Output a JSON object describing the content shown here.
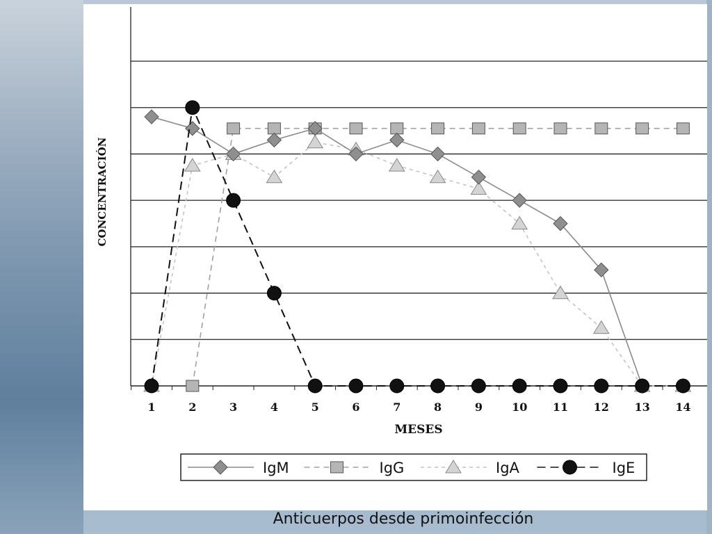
{
  "caption": "Anticuerpos desde primoinfección",
  "chart_data": {
    "type": "line",
    "title": "",
    "xlabel": "MESES",
    "ylabel": "CONCENTRACIÓN",
    "x": [
      1,
      2,
      3,
      4,
      5,
      6,
      7,
      8,
      9,
      10,
      11,
      12,
      13,
      14
    ],
    "ylim": [
      0,
      7
    ],
    "y_gridlines": 7,
    "y_tick_labels": false,
    "legend": "bottom",
    "series": [
      {
        "name": "IgM",
        "style": "solid",
        "marker": "diamond",
        "color": "#8a8a8a",
        "values": [
          5.8,
          5.55,
          5.0,
          5.3,
          5.55,
          5.0,
          5.3,
          5.0,
          4.5,
          4.0,
          3.5,
          2.5,
          0,
          null
        ]
      },
      {
        "name": "IgG",
        "style": "dashed",
        "marker": "square",
        "color": "#a8a8a8",
        "values": [
          null,
          0,
          5.55,
          5.55,
          5.55,
          5.55,
          5.55,
          5.55,
          5.55,
          5.55,
          5.55,
          5.55,
          5.55,
          5.55
        ]
      },
      {
        "name": "IgA",
        "style": "dashed-light",
        "marker": "triangle",
        "color": "#c8c8c8",
        "values": [
          0,
          4.75,
          5.0,
          4.5,
          5.25,
          5.1,
          4.75,
          4.5,
          4.25,
          3.5,
          2.0,
          1.25,
          0,
          0
        ]
      },
      {
        "name": "IgE",
        "style": "long-dash",
        "marker": "circle",
        "color": "#111111",
        "values": [
          0,
          6.0,
          4.0,
          2.0,
          0,
          0,
          0,
          0,
          0,
          0,
          0,
          0,
          0,
          0
        ]
      }
    ]
  }
}
